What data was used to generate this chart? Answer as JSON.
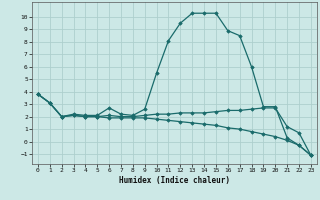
{
  "xlabel": "Humidex (Indice chaleur)",
  "background_color": "#cce8e6",
  "grid_color": "#aecfcd",
  "line_color": "#1a6b6b",
  "xlim": [
    -0.5,
    23.5
  ],
  "ylim": [
    -1.8,
    11.2
  ],
  "xticks": [
    0,
    1,
    2,
    3,
    4,
    5,
    6,
    7,
    8,
    9,
    10,
    11,
    12,
    13,
    14,
    15,
    16,
    17,
    18,
    19,
    20,
    21,
    22,
    23
  ],
  "yticks": [
    -1,
    0,
    1,
    2,
    3,
    4,
    5,
    6,
    7,
    8,
    9,
    10
  ],
  "line1_x": [
    0,
    1,
    2,
    3,
    4,
    5,
    6,
    7,
    8,
    9,
    10,
    11,
    12,
    13,
    14,
    15,
    16,
    17,
    18,
    19,
    20,
    21,
    22,
    23
  ],
  "line1_y": [
    3.8,
    3.1,
    2.0,
    2.2,
    2.1,
    2.1,
    2.7,
    2.2,
    2.1,
    2.6,
    5.5,
    8.1,
    9.5,
    10.3,
    10.3,
    10.3,
    8.9,
    8.5,
    6.0,
    2.8,
    2.8,
    0.3,
    -0.3,
    -1.1
  ],
  "line2_x": [
    0,
    1,
    2,
    3,
    4,
    5,
    6,
    7,
    8,
    9,
    10,
    11,
    12,
    13,
    14,
    15,
    16,
    17,
    18,
    19,
    20,
    21,
    22,
    23
  ],
  "line2_y": [
    3.8,
    3.1,
    2.0,
    2.1,
    2.0,
    2.0,
    2.1,
    2.0,
    2.0,
    2.1,
    2.2,
    2.2,
    2.3,
    2.3,
    2.3,
    2.4,
    2.5,
    2.5,
    2.6,
    2.7,
    2.7,
    1.2,
    0.7,
    -1.1
  ],
  "line3_x": [
    0,
    1,
    2,
    3,
    4,
    5,
    6,
    7,
    8,
    9,
    10,
    11,
    12,
    13,
    14,
    15,
    16,
    17,
    18,
    19,
    20,
    21,
    22,
    23
  ],
  "line3_y": [
    3.8,
    3.1,
    2.0,
    2.1,
    2.0,
    2.0,
    1.9,
    1.9,
    1.9,
    1.9,
    1.8,
    1.7,
    1.6,
    1.5,
    1.4,
    1.3,
    1.1,
    1.0,
    0.8,
    0.6,
    0.4,
    0.1,
    -0.3,
    -1.1
  ]
}
